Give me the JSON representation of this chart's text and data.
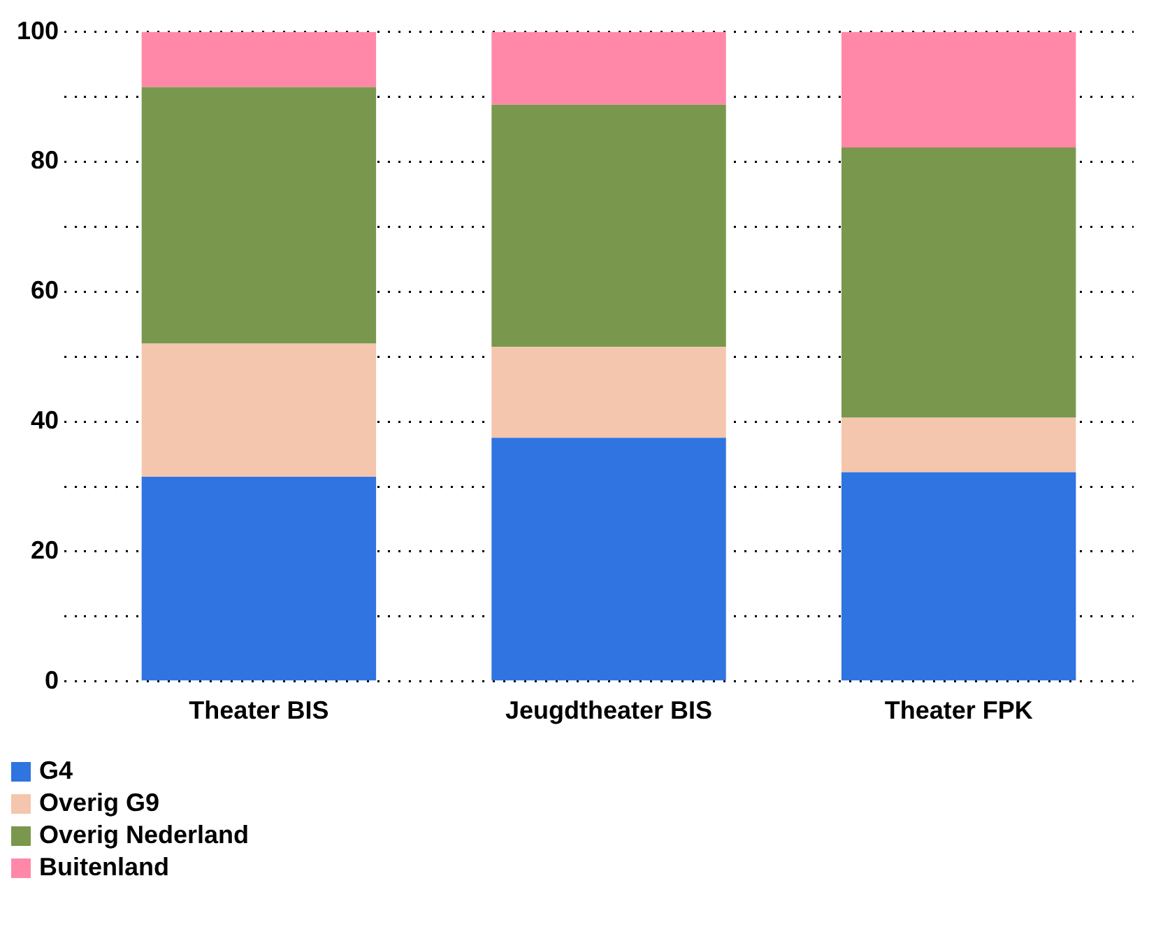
{
  "chart_data": {
    "type": "bar",
    "stacked": true,
    "categories": [
      "Theater BIS",
      "Jeugdtheater BIS",
      "Theater FPK"
    ],
    "series": [
      {
        "name": "G4",
        "color": "#2f74e0",
        "values": [
          31.5,
          37.5,
          32.2
        ]
      },
      {
        "name": "Overig G9",
        "color": "#f4c6ad",
        "values": [
          20.5,
          14,
          8.4
        ]
      },
      {
        "name": "Overig Nederland",
        "color": "#7a984d",
        "values": [
          39.5,
          37.3,
          41.6
        ]
      },
      {
        "name": "Buitenland",
        "color": "#ff88a8",
        "values": [
          8.5,
          11.2,
          17.8
        ]
      }
    ],
    "ylim": [
      0,
      100
    ],
    "yticks": [
      0,
      {
        "value": 10,
        "label": null
      },
      20,
      {
        "value": 30,
        "label": null
      },
      40,
      {
        "value": 50,
        "label": null
      },
      60,
      {
        "value": 70,
        "label": null
      },
      80,
      {
        "value": 90,
        "label": null
      },
      100
    ],
    "grid": "y",
    "legend": "bottom left"
  }
}
